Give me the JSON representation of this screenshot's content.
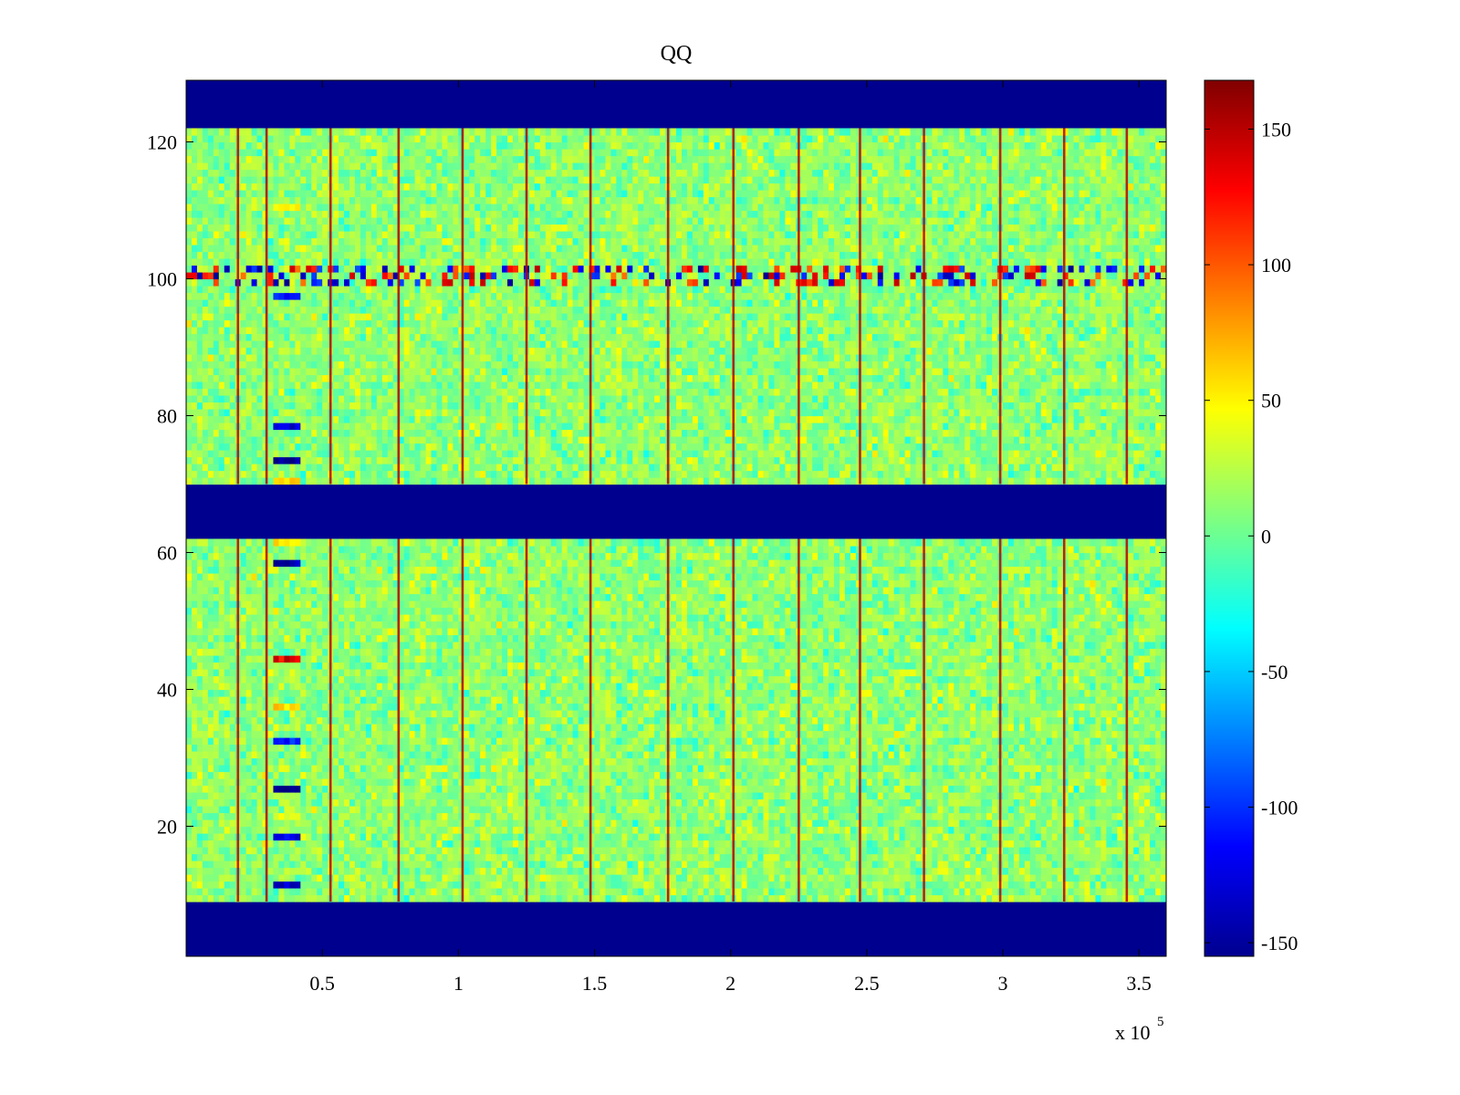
{
  "chart_data": {
    "type": "heatmap",
    "title": "QQ",
    "xlabel": "",
    "ylabel": "",
    "x_multiplier_label": "x 10",
    "x_multiplier_exponent": "5",
    "xlim": [
      0,
      3.6
    ],
    "ylim": [
      1,
      129
    ],
    "x_ticks": [
      0.5,
      1,
      1.5,
      2,
      2.5,
      3,
      3.5
    ],
    "x_tick_labels": [
      "0.5",
      "1",
      "1.5",
      "2",
      "2.5",
      "3",
      "3.5"
    ],
    "y_ticks": [
      20,
      40,
      60,
      80,
      100,
      120
    ],
    "y_tick_labels": [
      "20",
      "40",
      "60",
      "80",
      "100",
      "120"
    ],
    "colormap": "jet",
    "clim": [
      -155,
      168
    ],
    "colorbar_ticks": [
      150,
      100,
      50,
      0,
      -50,
      -100,
      -150
    ],
    "colorbar_tick_labels": [
      "150",
      "100",
      "50",
      "0",
      "-50",
      "-100",
      "-150"
    ],
    "background_value": -155,
    "rows_no_data": [
      [
        1,
        8
      ],
      [
        62,
        69
      ],
      [
        122,
        129
      ]
    ],
    "noise_level": 15,
    "vertical_stripe_x": [
      0.19,
      0.295,
      0.53,
      0.78,
      1.015,
      1.25,
      1.485,
      1.77,
      2.01,
      2.25,
      2.475,
      2.71,
      2.99,
      3.225,
      3.455
    ],
    "stripe_value": 150,
    "anomaly_band": {
      "x_range": [
        0.32,
        0.41
      ],
      "rows": [
        {
          "row": 11,
          "value": -140
        },
        {
          "row": 18,
          "value": -120
        },
        {
          "row": 21,
          "value": 40
        },
        {
          "row": 25,
          "value": -150
        },
        {
          "row": 32,
          "value": -100
        },
        {
          "row": 37,
          "value": 60
        },
        {
          "row": 44,
          "value": 140
        },
        {
          "row": 58,
          "value": -140
        },
        {
          "row": 61,
          "value": 60
        },
        {
          "row": 70,
          "value": 60
        },
        {
          "row": 73,
          "value": -150
        },
        {
          "row": 78,
          "value": -120
        },
        {
          "row": 97,
          "value": -100
        },
        {
          "row": 110,
          "value": 50
        }
      ]
    },
    "row_100_band": {
      "rows": [
        99,
        100,
        101
      ],
      "alternating": [
        -150,
        150
      ]
    }
  }
}
